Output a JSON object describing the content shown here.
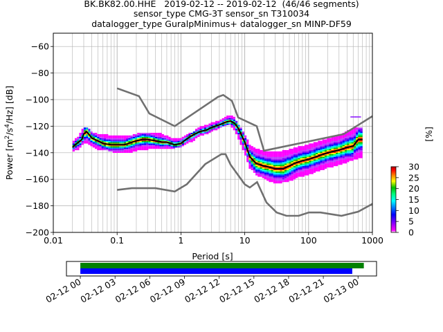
{
  "title": {
    "line1": "BK.BK82.00.HHE   2019-02-12 -- 2019-02-12  (46/46 segments)",
    "line2": "sensor_type CMG-3T sensor_sn T310034",
    "line3": "datalogger_type GuralpMinimus+ datalogger_sn MINP-DF59"
  },
  "chart_data": [
    {
      "type": "heatmap",
      "xlabel": "Period [s]",
      "ylabel": "Power [m²/s⁴/Hz] [dB]",
      "x_scale": "log",
      "xlim": [
        0.01,
        1000
      ],
      "ylim": [
        -200,
        -50
      ],
      "x_ticks": [
        "0.01",
        "0.1",
        "1",
        "10",
        "100",
        "1000"
      ],
      "x_tick_values": [
        0.01,
        0.1,
        1,
        10,
        100,
        1000
      ],
      "y_ticks": [
        -200,
        -180,
        -160,
        -140,
        -120,
        -100,
        -80,
        -60
      ],
      "grid": true,
      "colorbar": {
        "label": "[%]",
        "min": 0,
        "max": 30,
        "ticks": [
          0,
          5,
          10,
          15,
          20,
          25,
          30
        ],
        "colors": [
          "#ffffff",
          "#ff00ff",
          "#8000ff",
          "#0000ff",
          "#0080ff",
          "#00ffff",
          "#00ff80",
          "#00c000",
          "#ffff00",
          "#ff8000",
          "#ff0000",
          "#b00000"
        ]
      },
      "mode_line": {
        "name": "mode",
        "x": [
          0.02,
          0.022,
          0.025,
          0.028,
          0.03,
          0.033,
          0.036,
          0.04,
          0.05,
          0.06,
          0.08,
          0.1,
          0.13,
          0.2,
          0.25,
          0.3,
          0.4,
          0.5,
          0.6,
          0.8,
          1.0,
          1.2,
          1.5,
          2.0,
          2.5,
          3.0,
          4.0,
          5.0,
          6.0,
          7.0,
          8.0,
          10,
          12,
          15,
          20,
          25,
          30,
          40,
          50,
          60,
          80,
          100,
          150,
          200,
          300,
          400,
          500,
          600,
          700
        ],
        "y": [
          -136,
          -134,
          -132,
          -130,
          -126,
          -124,
          -126,
          -129,
          -131,
          -133,
          -134,
          -134,
          -134,
          -131,
          -130,
          -130,
          -131,
          -132,
          -132,
          -134,
          -133,
          -130,
          -127,
          -124,
          -123,
          -121,
          -119,
          -117,
          -116,
          -118,
          -122,
          -132,
          -143,
          -148,
          -150,
          -151,
          -152,
          -152,
          -150,
          -148,
          -146,
          -145,
          -142,
          -140,
          -138,
          -136,
          -135,
          -130,
          -130
        ]
      },
      "noise_models": [
        {
          "name": "NHNM",
          "x": [
            0.1,
            0.22,
            0.32,
            0.8,
            3.8,
            4.6,
            6.3,
            7.9,
            15.4,
            20,
            354.8,
            1000
          ],
          "y": [
            -91.5,
            -97.4,
            -110.5,
            -120,
            -98,
            -96.5,
            -101,
            -113.5,
            -120,
            -138.5,
            -126,
            -112.5
          ]
        },
        {
          "name": "NLNM",
          "x": [
            0.1,
            0.17,
            0.4,
            0.8,
            1.24,
            2.4,
            4.3,
            5.0,
            6.0,
            10.0,
            12.0,
            15.6,
            21.9,
            31.6,
            45,
            70,
            101,
            154,
            328,
            600,
            1000
          ],
          "y": [
            -168,
            -166.7,
            -166.7,
            -169.2,
            -163.7,
            -148.6,
            -141.1,
            -141.1,
            -149,
            -163.8,
            -166.2,
            -162.1,
            -177.5,
            -185,
            -187.5,
            -187.5,
            -185,
            -185,
            -187.5,
            -184.4,
            -178.5
          ]
        }
      ],
      "spread": {
        "x": [
          0.02,
          0.025,
          0.03,
          0.035,
          0.04,
          0.05,
          0.07,
          0.1,
          0.15,
          0.2,
          0.3,
          0.5,
          0.8,
          1.0,
          1.5,
          2.0,
          3.0,
          4.0,
          5.0,
          6.0,
          7.0,
          8.0,
          10,
          12,
          15,
          20,
          30,
          50,
          70,
          100,
          200,
          300,
          500,
          700
        ],
        "upper": [
          -132,
          -128,
          -121,
          -122,
          -125,
          -126,
          -127,
          -127,
          -128,
          -126,
          -125,
          -126,
          -130,
          -129,
          -125,
          -121,
          -118,
          -116,
          -113,
          -112,
          -114,
          -119,
          -126,
          -134,
          -137,
          -139,
          -140,
          -138,
          -136,
          -134,
          -130,
          -127,
          -122,
          -121
        ],
        "lower": [
          -139,
          -137,
          -133,
          -133,
          -135,
          -137,
          -138,
          -140,
          -140,
          -138,
          -137,
          -137,
          -136,
          -135,
          -131,
          -127,
          -124,
          -121,
          -119,
          -119,
          -123,
          -129,
          -140,
          -151,
          -156,
          -159,
          -163,
          -161,
          -158,
          -156,
          -151,
          -149,
          -145,
          -143
        ]
      },
      "outliers": [
        {
          "x": 500,
          "y": -113
        },
        {
          "x": 600,
          "y": -113
        }
      ]
    },
    {
      "type": "timeline",
      "x_ticks": [
        "02-12 00",
        "02-12 03",
        "02-12 06",
        "02-12 09",
        "02-12 12",
        "02-12 15",
        "02-12 18",
        "02-12 21",
        "02-13 00"
      ],
      "x_tick_hours": [
        0,
        3,
        6,
        9,
        12,
        15,
        18,
        21,
        24
      ],
      "xlim_hours": [
        -1.2,
        25.6
      ],
      "bars": [
        {
          "name": "data",
          "start_hour": 0,
          "end_hour": 24.5,
          "color": "#008000"
        },
        {
          "name": "psd",
          "start_hour": 0,
          "end_hour": 23.5,
          "color": "#0000ff"
        }
      ]
    }
  ]
}
